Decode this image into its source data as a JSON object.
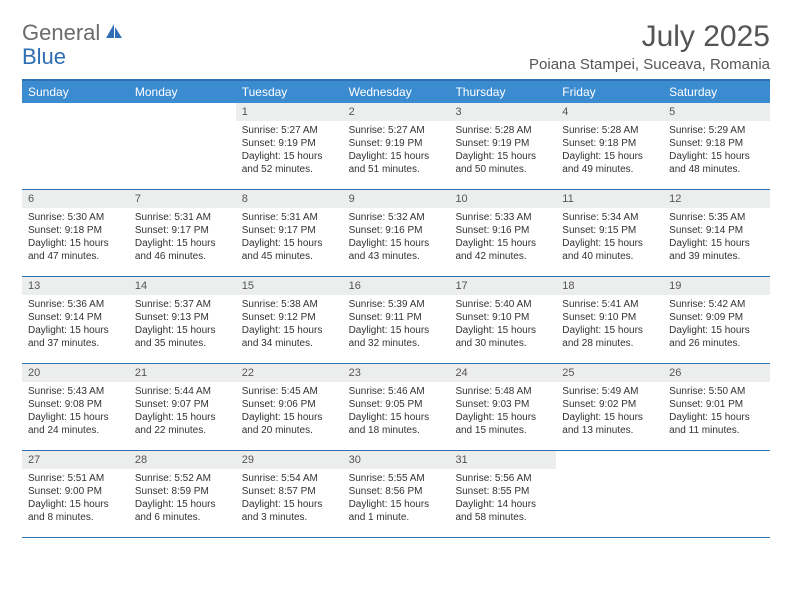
{
  "logo": {
    "part1": "General",
    "part2": "Blue"
  },
  "title": "July 2025",
  "location": "Poiana Stampei, Suceava, Romania",
  "colors": {
    "header_bg": "#3b8bd0",
    "border": "#2f6fb3",
    "day_bar_bg": "#eceded",
    "text": "#333333",
    "title_text": "#555555"
  },
  "weekdays": [
    "Sunday",
    "Monday",
    "Tuesday",
    "Wednesday",
    "Thursday",
    "Friday",
    "Saturday"
  ],
  "weeks": [
    [
      {
        "n": "",
        "sunrise": "",
        "sunset": "",
        "daylight": ""
      },
      {
        "n": "",
        "sunrise": "",
        "sunset": "",
        "daylight": ""
      },
      {
        "n": "1",
        "sunrise": "Sunrise: 5:27 AM",
        "sunset": "Sunset: 9:19 PM",
        "daylight": "Daylight: 15 hours and 52 minutes."
      },
      {
        "n": "2",
        "sunrise": "Sunrise: 5:27 AM",
        "sunset": "Sunset: 9:19 PM",
        "daylight": "Daylight: 15 hours and 51 minutes."
      },
      {
        "n": "3",
        "sunrise": "Sunrise: 5:28 AM",
        "sunset": "Sunset: 9:19 PM",
        "daylight": "Daylight: 15 hours and 50 minutes."
      },
      {
        "n": "4",
        "sunrise": "Sunrise: 5:28 AM",
        "sunset": "Sunset: 9:18 PM",
        "daylight": "Daylight: 15 hours and 49 minutes."
      },
      {
        "n": "5",
        "sunrise": "Sunrise: 5:29 AM",
        "sunset": "Sunset: 9:18 PM",
        "daylight": "Daylight: 15 hours and 48 minutes."
      }
    ],
    [
      {
        "n": "6",
        "sunrise": "Sunrise: 5:30 AM",
        "sunset": "Sunset: 9:18 PM",
        "daylight": "Daylight: 15 hours and 47 minutes."
      },
      {
        "n": "7",
        "sunrise": "Sunrise: 5:31 AM",
        "sunset": "Sunset: 9:17 PM",
        "daylight": "Daylight: 15 hours and 46 minutes."
      },
      {
        "n": "8",
        "sunrise": "Sunrise: 5:31 AM",
        "sunset": "Sunset: 9:17 PM",
        "daylight": "Daylight: 15 hours and 45 minutes."
      },
      {
        "n": "9",
        "sunrise": "Sunrise: 5:32 AM",
        "sunset": "Sunset: 9:16 PM",
        "daylight": "Daylight: 15 hours and 43 minutes."
      },
      {
        "n": "10",
        "sunrise": "Sunrise: 5:33 AM",
        "sunset": "Sunset: 9:16 PM",
        "daylight": "Daylight: 15 hours and 42 minutes."
      },
      {
        "n": "11",
        "sunrise": "Sunrise: 5:34 AM",
        "sunset": "Sunset: 9:15 PM",
        "daylight": "Daylight: 15 hours and 40 minutes."
      },
      {
        "n": "12",
        "sunrise": "Sunrise: 5:35 AM",
        "sunset": "Sunset: 9:14 PM",
        "daylight": "Daylight: 15 hours and 39 minutes."
      }
    ],
    [
      {
        "n": "13",
        "sunrise": "Sunrise: 5:36 AM",
        "sunset": "Sunset: 9:14 PM",
        "daylight": "Daylight: 15 hours and 37 minutes."
      },
      {
        "n": "14",
        "sunrise": "Sunrise: 5:37 AM",
        "sunset": "Sunset: 9:13 PM",
        "daylight": "Daylight: 15 hours and 35 minutes."
      },
      {
        "n": "15",
        "sunrise": "Sunrise: 5:38 AM",
        "sunset": "Sunset: 9:12 PM",
        "daylight": "Daylight: 15 hours and 34 minutes."
      },
      {
        "n": "16",
        "sunrise": "Sunrise: 5:39 AM",
        "sunset": "Sunset: 9:11 PM",
        "daylight": "Daylight: 15 hours and 32 minutes."
      },
      {
        "n": "17",
        "sunrise": "Sunrise: 5:40 AM",
        "sunset": "Sunset: 9:10 PM",
        "daylight": "Daylight: 15 hours and 30 minutes."
      },
      {
        "n": "18",
        "sunrise": "Sunrise: 5:41 AM",
        "sunset": "Sunset: 9:10 PM",
        "daylight": "Daylight: 15 hours and 28 minutes."
      },
      {
        "n": "19",
        "sunrise": "Sunrise: 5:42 AM",
        "sunset": "Sunset: 9:09 PM",
        "daylight": "Daylight: 15 hours and 26 minutes."
      }
    ],
    [
      {
        "n": "20",
        "sunrise": "Sunrise: 5:43 AM",
        "sunset": "Sunset: 9:08 PM",
        "daylight": "Daylight: 15 hours and 24 minutes."
      },
      {
        "n": "21",
        "sunrise": "Sunrise: 5:44 AM",
        "sunset": "Sunset: 9:07 PM",
        "daylight": "Daylight: 15 hours and 22 minutes."
      },
      {
        "n": "22",
        "sunrise": "Sunrise: 5:45 AM",
        "sunset": "Sunset: 9:06 PM",
        "daylight": "Daylight: 15 hours and 20 minutes."
      },
      {
        "n": "23",
        "sunrise": "Sunrise: 5:46 AM",
        "sunset": "Sunset: 9:05 PM",
        "daylight": "Daylight: 15 hours and 18 minutes."
      },
      {
        "n": "24",
        "sunrise": "Sunrise: 5:48 AM",
        "sunset": "Sunset: 9:03 PM",
        "daylight": "Daylight: 15 hours and 15 minutes."
      },
      {
        "n": "25",
        "sunrise": "Sunrise: 5:49 AM",
        "sunset": "Sunset: 9:02 PM",
        "daylight": "Daylight: 15 hours and 13 minutes."
      },
      {
        "n": "26",
        "sunrise": "Sunrise: 5:50 AM",
        "sunset": "Sunset: 9:01 PM",
        "daylight": "Daylight: 15 hours and 11 minutes."
      }
    ],
    [
      {
        "n": "27",
        "sunrise": "Sunrise: 5:51 AM",
        "sunset": "Sunset: 9:00 PM",
        "daylight": "Daylight: 15 hours and 8 minutes."
      },
      {
        "n": "28",
        "sunrise": "Sunrise: 5:52 AM",
        "sunset": "Sunset: 8:59 PM",
        "daylight": "Daylight: 15 hours and 6 minutes."
      },
      {
        "n": "29",
        "sunrise": "Sunrise: 5:54 AM",
        "sunset": "Sunset: 8:57 PM",
        "daylight": "Daylight: 15 hours and 3 minutes."
      },
      {
        "n": "30",
        "sunrise": "Sunrise: 5:55 AM",
        "sunset": "Sunset: 8:56 PM",
        "daylight": "Daylight: 15 hours and 1 minute."
      },
      {
        "n": "31",
        "sunrise": "Sunrise: 5:56 AM",
        "sunset": "Sunset: 8:55 PM",
        "daylight": "Daylight: 14 hours and 58 minutes."
      },
      {
        "n": "",
        "sunrise": "",
        "sunset": "",
        "daylight": ""
      },
      {
        "n": "",
        "sunrise": "",
        "sunset": "",
        "daylight": ""
      }
    ]
  ]
}
